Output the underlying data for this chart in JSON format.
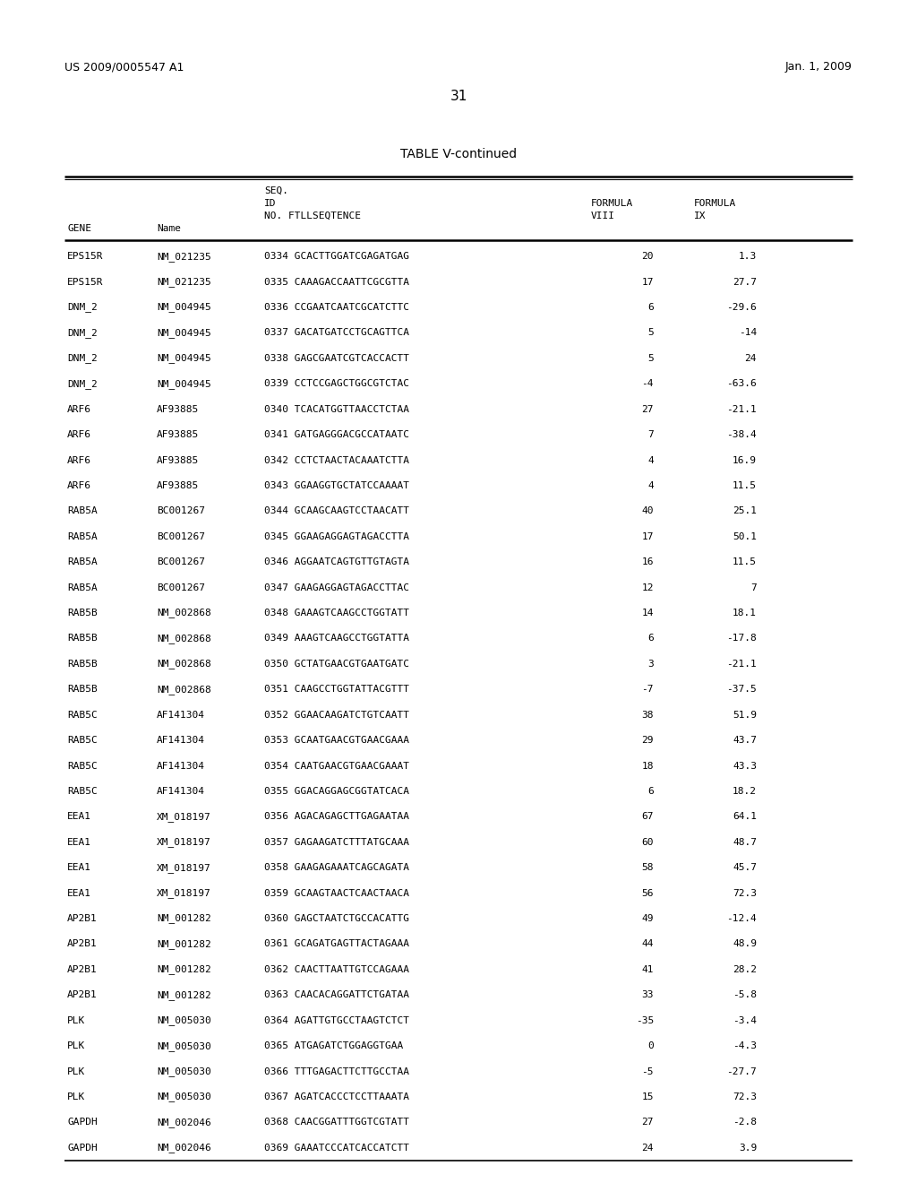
{
  "header_left": "US 2009/0005547 A1",
  "header_right": "Jan. 1, 2009",
  "page_number": "31",
  "table_title": "TABLE V-continued",
  "rows": [
    [
      "EPS15R",
      "NM_021235",
      "0334 GCACTTGGATCGAGATGAG",
      "20",
      "1.3"
    ],
    [
      "EPS15R",
      "NM_021235",
      "0335 CAAAGACCAATTCGCGTTA",
      "17",
      "27.7"
    ],
    [
      "DNM_2",
      "NM_004945",
      "0336 CCGAATCAATCGCATCTTC",
      "6",
      "-29.6"
    ],
    [
      "DNM_2",
      "NM_004945",
      "0337 GACATGATCCTGCAGTTCA",
      "5",
      "-14"
    ],
    [
      "DNM_2",
      "NM_004945",
      "0338 GAGCGAATCGTCACCACTT",
      "5",
      "24"
    ],
    [
      "DNM_2",
      "NM_004945",
      "0339 CCTCCGAGCTGGCGTCTAC",
      "-4",
      "-63.6"
    ],
    [
      "ARF6",
      "AF93885",
      "0340 TCACATGGTTAACCTCTAA",
      "27",
      "-21.1"
    ],
    [
      "ARF6",
      "AF93885",
      "0341 GATGAGGGACGCCATAATC",
      "7",
      "-38.4"
    ],
    [
      "ARF6",
      "AF93885",
      "0342 CCTCTAACTACAAATCTTA",
      "4",
      "16.9"
    ],
    [
      "ARF6",
      "AF93885",
      "0343 GGAAGGTGCTATCCAAAAT",
      "4",
      "11.5"
    ],
    [
      "RAB5A",
      "BC001267",
      "0344 GCAAGCAAGTCCTAACATT",
      "40",
      "25.1"
    ],
    [
      "RAB5A",
      "BC001267",
      "0345 GGAAGAGGAGTAGACCTTA",
      "17",
      "50.1"
    ],
    [
      "RAB5A",
      "BC001267",
      "0346 AGGAATCAGTGTTGTAGTA",
      "16",
      "11.5"
    ],
    [
      "RAB5A",
      "BC001267",
      "0347 GAAGAGGAGTAGACCTTAC",
      "12",
      "7"
    ],
    [
      "RAB5B",
      "NM_002868",
      "0348 GAAAGTCAAGCCTGGTATT",
      "14",
      "18.1"
    ],
    [
      "RAB5B",
      "NM_002868",
      "0349 AAAGTCAAGCCTGGTATTA",
      "6",
      "-17.8"
    ],
    [
      "RAB5B",
      "NM_002868",
      "0350 GCTATGAACGTGAATGATC",
      "3",
      "-21.1"
    ],
    [
      "RAB5B",
      "NM_002868",
      "0351 CAAGCCTGGTATTACGTTT",
      "-7",
      "-37.5"
    ],
    [
      "RAB5C",
      "AF141304",
      "0352 GGAACAAGATCTGTCAATT",
      "38",
      "51.9"
    ],
    [
      "RAB5C",
      "AF141304",
      "0353 GCAATGAACGTGAACGAAA",
      "29",
      "43.7"
    ],
    [
      "RAB5C",
      "AF141304",
      "0354 CAATGAACGTGAACGAAAT",
      "18",
      "43.3"
    ],
    [
      "RAB5C",
      "AF141304",
      "0355 GGACAGGAGCGGTATCACA",
      "6",
      "18.2"
    ],
    [
      "EEA1",
      "XM_018197",
      "0356 AGACAGAGCTTGAGAATAA",
      "67",
      "64.1"
    ],
    [
      "EEA1",
      "XM_018197",
      "0357 GAGAAGATCTTTATGCAAA",
      "60",
      "48.7"
    ],
    [
      "EEA1",
      "XM_018197",
      "0358 GAAGAGAAATCAGCAGATA",
      "58",
      "45.7"
    ],
    [
      "EEA1",
      "XM_018197",
      "0359 GCAAGTAACTCAACTAACA",
      "56",
      "72.3"
    ],
    [
      "AP2B1",
      "NM_001282",
      "0360 GAGCTAATCTGCCACATTG",
      "49",
      "-12.4"
    ],
    [
      "AP2B1",
      "NM_001282",
      "0361 GCAGATGAGTTACTAGAAA",
      "44",
      "48.9"
    ],
    [
      "AP2B1",
      "NM_001282",
      "0362 CAACTTAATTGTCCAGAAA",
      "41",
      "28.2"
    ],
    [
      "AP2B1",
      "NM_001282",
      "0363 CAACACAGGATTCTGATAA",
      "33",
      "-5.8"
    ],
    [
      "PLK",
      "NM_005030",
      "0364 AGATTGTGCCTAAGTCTCT",
      "-35",
      "-3.4"
    ],
    [
      "PLK",
      "NM_005030",
      "0365 ATGAGATCTGGAGGTGAA",
      "0",
      "-4.3"
    ],
    [
      "PLK",
      "NM_005030",
      "0366 TTTGAGACTTCTTGCCTAA",
      "-5",
      "-27.7"
    ],
    [
      "PLK",
      "NM_005030",
      "0367 AGATCACCCTCCTTAAATA",
      "15",
      "72.3"
    ],
    [
      "GAPDH",
      "NM_002046",
      "0368 CAACGGATTTGGTCGTATT",
      "27",
      "-2.8"
    ],
    [
      "GAPDH",
      "NM_002046",
      "0369 GAAATCCCATCACCATCTT",
      "24",
      "3.9"
    ]
  ],
  "bg_color": "#ffffff",
  "text_color": "#000000"
}
